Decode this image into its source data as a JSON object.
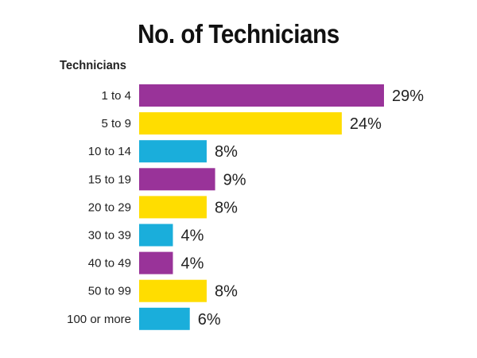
{
  "chart_data": {
    "type": "bar",
    "orientation": "horizontal",
    "title": "No. of Technicians",
    "ylabel": "Technicians",
    "xlabel": "",
    "categories": [
      "1 to 4",
      "5 to 9",
      "10 to 14",
      "15 to 19",
      "20 to 29",
      "30 to 39",
      "40 to 49",
      "50 to 99",
      "100 or more"
    ],
    "values": [
      29,
      24,
      8,
      9,
      8,
      4,
      4,
      8,
      6
    ],
    "value_labels": [
      "29%",
      "24%",
      "8%",
      "9%",
      "8%",
      "4%",
      "4%",
      "8%",
      "6%"
    ],
    "unit": "%",
    "colors": [
      "#993399",
      "#FFDD00",
      "#1AAEDB",
      "#993399",
      "#FFDD00",
      "#1AAEDB",
      "#993399",
      "#FFDD00",
      "#1AAEDB"
    ],
    "xlim": [
      0,
      29
    ],
    "grid": false,
    "legend": "none"
  }
}
